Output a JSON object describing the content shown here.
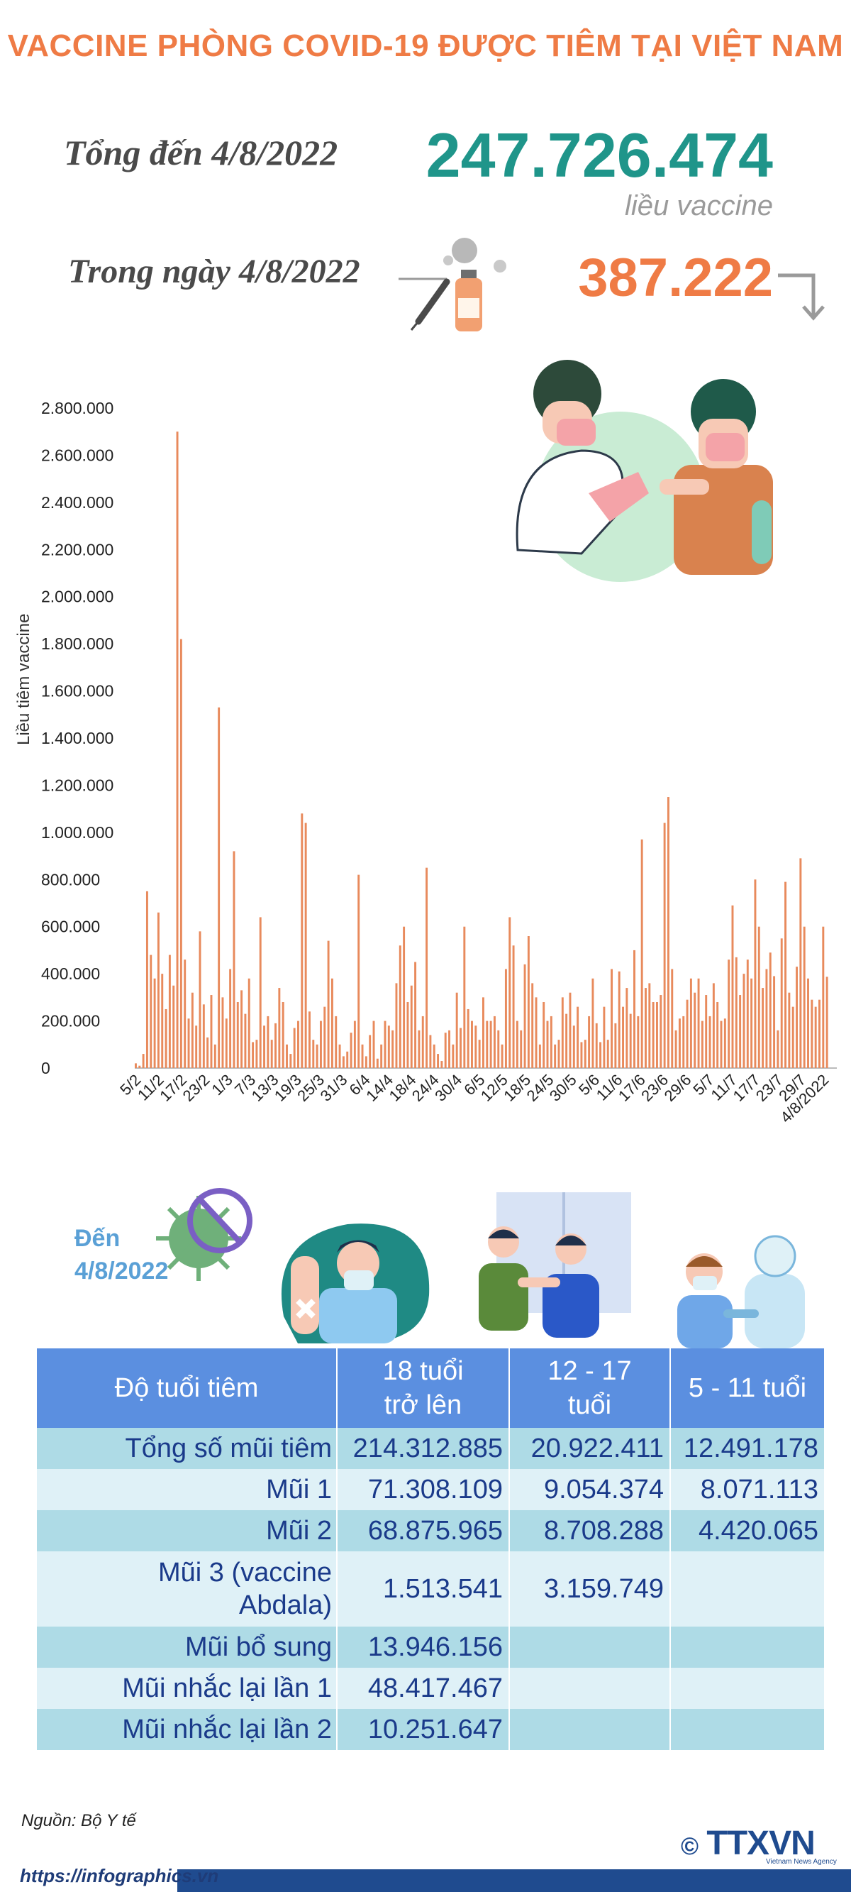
{
  "header": {
    "title": "VACCINE PHÒNG COVID-19 ĐƯỢC TIÊM TẠI VIỆT NAM",
    "total_label": "Tổng đến 4/8/2022",
    "total_value": "247.726.474",
    "total_unit": "liều vaccine",
    "day_label": "Trong ngày 4/8/2022",
    "day_value": "387.222"
  },
  "colors": {
    "accent_orange": "#ef7b45",
    "accent_teal": "#1f958a",
    "table_header": "#5b8fe0",
    "row_dark": "#aedbe6",
    "row_light": "#dff1f7",
    "bar": "#e88a5c"
  },
  "chart_data": {
    "type": "bar",
    "ylabel": "Liều tiêm vaccine",
    "ylim": [
      0,
      2800000
    ],
    "yticks": [
      "0",
      "200.000",
      "400.000",
      "600.000",
      "800.000",
      "1.000.000",
      "1.200.000",
      "1.400.000",
      "1.600.000",
      "1.800.000",
      "2.000.000",
      "2.200.000",
      "2.400.000",
      "2.600.000",
      "2.800.000"
    ],
    "xticks": [
      "5/2",
      "11/2",
      "17/2",
      "23/2",
      "1/3",
      "7/3",
      "13/3",
      "19/3",
      "25/3",
      "31/3",
      "6/4",
      "14/4",
      "18/4",
      "24/4",
      "30/4",
      "6/5",
      "12/5",
      "18/5",
      "24/5",
      "30/5",
      "5/6",
      "11/6",
      "17/6",
      "23/6",
      "29/6",
      "5/7",
      "11/7",
      "17/7",
      "23/7",
      "29/7",
      "4/8/2022"
    ],
    "values": [
      20000,
      10000,
      60000,
      750000,
      480000,
      380000,
      660000,
      400000,
      250000,
      480000,
      350000,
      2700000,
      1820000,
      460000,
      210000,
      320000,
      180000,
      580000,
      270000,
      130000,
      310000,
      100000,
      1530000,
      300000,
      210000,
      420000,
      920000,
      280000,
      330000,
      230000,
      380000,
      110000,
      120000,
      640000,
      180000,
      220000,
      120000,
      190000,
      340000,
      280000,
      100000,
      60000,
      170000,
      200000,
      1080000,
      1040000,
      240000,
      120000,
      100000,
      200000,
      260000,
      540000,
      380000,
      220000,
      100000,
      50000,
      70000,
      150000,
      200000,
      820000,
      100000,
      50000,
      140000,
      200000,
      40000,
      100000,
      200000,
      180000,
      160000,
      360000,
      520000,
      600000,
      280000,
      350000,
      450000,
      160000,
      220000,
      850000,
      140000,
      100000,
      60000,
      30000,
      150000,
      160000,
      100000,
      320000,
      170000,
      600000,
      250000,
      200000,
      180000,
      120000,
      300000,
      200000,
      200000,
      220000,
      160000,
      100000,
      420000,
      640000,
      520000,
      200000,
      160000,
      440000,
      560000,
      360000,
      300000,
      100000,
      280000,
      200000,
      220000,
      100000,
      120000,
      300000,
      230000,
      320000,
      180000,
      260000,
      110000,
      120000,
      220000,
      380000,
      190000,
      110000,
      260000,
      120000,
      420000,
      190000,
      410000,
      260000,
      340000,
      230000,
      500000,
      220000,
      970000,
      340000,
      360000,
      280000,
      280000,
      310000,
      1040000,
      1150000,
      420000,
      160000,
      210000,
      220000,
      290000,
      380000,
      320000,
      380000,
      200000,
      310000,
      220000,
      360000,
      280000,
      200000,
      210000,
      460000,
      690000,
      470000,
      310000,
      400000,
      460000,
      380000,
      800000,
      600000,
      340000,
      420000,
      490000,
      390000,
      160000,
      550000,
      790000,
      320000,
      260000,
      430000,
      890000,
      600000,
      380000,
      290000,
      260000,
      290000,
      600000,
      387222
    ]
  },
  "illustration": {
    "date_label": "Đến\n4/8/2022"
  },
  "table": {
    "headers": [
      "Độ tuổi tiêm",
      "18 tuổi\ntrở lên",
      "12 - 17\ntuổi",
      "5 - 11 tuổi"
    ],
    "rows": [
      {
        "label": "Tổng số mũi tiêm",
        "c1": "214.312.885",
        "c2": "20.922.411",
        "c3": "12.491.178"
      },
      {
        "label": "Mũi 1",
        "c1": "71.308.109",
        "c2": "9.054.374",
        "c3": "8.071.113"
      },
      {
        "label": "Mũi 2",
        "c1": "68.875.965",
        "c2": "8.708.288",
        "c3": "4.420.065"
      },
      {
        "label": "Mũi 3 (vaccine\nAbdala)",
        "c1": "1.513.541",
        "c2": "3.159.749",
        "c3": ""
      },
      {
        "label": "Mũi bổ sung",
        "c1": "13.946.156",
        "c2": "",
        "c3": ""
      },
      {
        "label": "Mũi nhắc lại lần 1",
        "c1": "48.417.467",
        "c2": "",
        "c3": ""
      },
      {
        "label": "Mũi nhắc lại lần 2",
        "c1": "10.251.647",
        "c2": "",
        "c3": ""
      }
    ]
  },
  "footer": {
    "source": "Nguồn: Bộ Y tế",
    "url": "https://infographics.vn",
    "logo": "TTXVN",
    "logo_copyright": "©",
    "logo_sub": "Vietnam News Agency"
  }
}
